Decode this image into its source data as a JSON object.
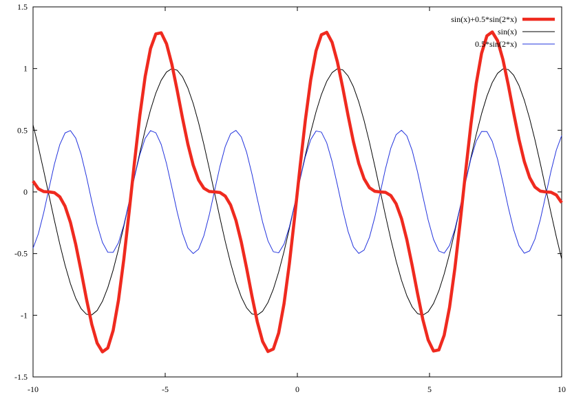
{
  "chart_data": {
    "type": "line",
    "title": "",
    "xlabel": "",
    "ylabel": "",
    "xlim": [
      -10,
      10
    ],
    "ylim": [
      -1.5,
      1.5
    ],
    "grid": false,
    "legend_position": "top-right",
    "x_ticks": [
      -10,
      -5,
      0,
      5,
      10
    ],
    "x_tick_labels": [
      "-10",
      "-5",
      "0",
      "5",
      "10"
    ],
    "y_ticks": [
      -1.5,
      -1,
      -0.5,
      0,
      0.5,
      1,
      1.5
    ],
    "y_tick_labels": [
      "-1.5",
      "-1",
      "-0.5",
      "0",
      "0.5",
      "1",
      "1.5"
    ],
    "samples": 100,
    "series": [
      {
        "name": "sin(x)+0.5*sin(2*x)",
        "expr": "sin(x)+0.5*sin(2*x)",
        "color": "#ef2a1f",
        "width": "heavy"
      },
      {
        "name": "sin(x)",
        "expr": "sin(x)",
        "color": "#000000",
        "width": "thin"
      },
      {
        "name": "0.5*sin(2*x)",
        "expr": "0.5*sin(2*x)",
        "color": "#2233dd",
        "width": "thin"
      }
    ]
  }
}
